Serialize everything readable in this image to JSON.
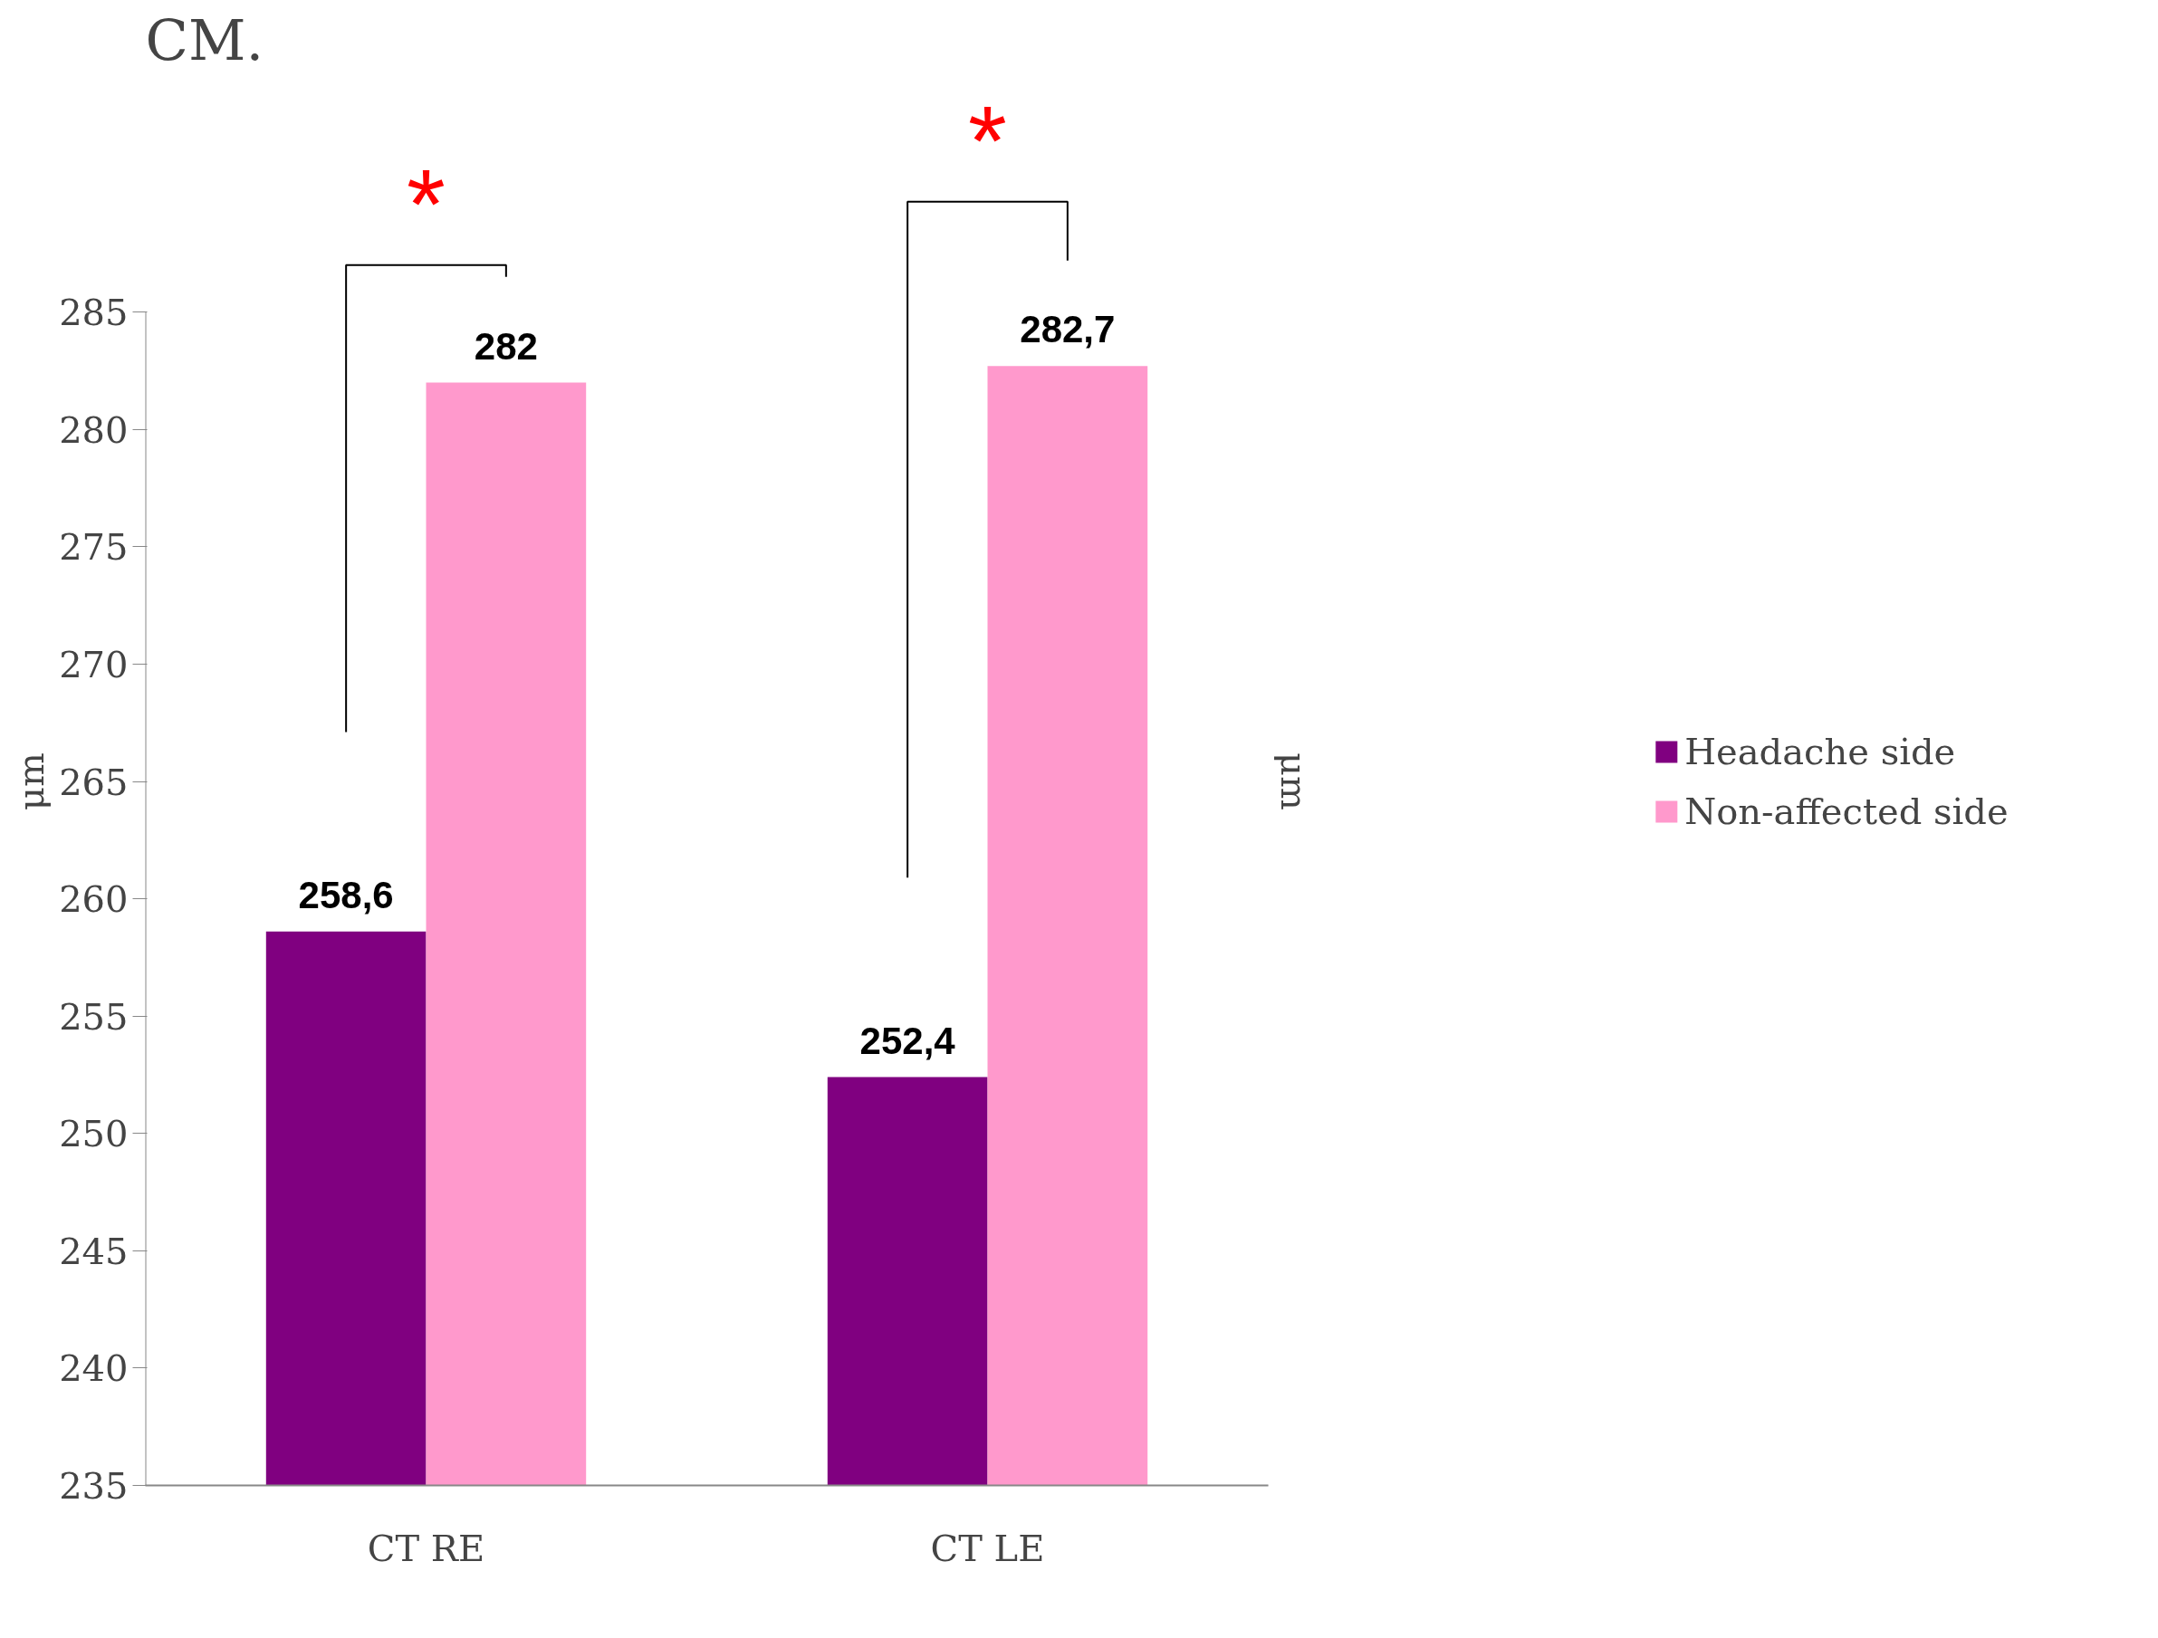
{
  "chart_data": {
    "type": "bar",
    "title": "CM.",
    "ylabel": "μm",
    "categories": [
      "CT RE",
      "CT LE"
    ],
    "series": [
      {
        "name": "Headache side",
        "color": "#800080",
        "values": [
          258.6,
          252.4
        ],
        "value_labels": [
          "258,6",
          "252,4"
        ]
      },
      {
        "name": "Non-affected side",
        "color": "#ff99cc",
        "values": [
          282,
          282.7
        ],
        "value_labels": [
          "282",
          "282,7"
        ]
      }
    ],
    "ylim": [
      235,
      285
    ],
    "yticks": [
      235,
      240,
      245,
      250,
      255,
      260,
      265,
      270,
      275,
      280,
      285
    ],
    "grid": false,
    "legend": "right",
    "annotations": [
      "*",
      "*",
      "μm"
    ]
  }
}
